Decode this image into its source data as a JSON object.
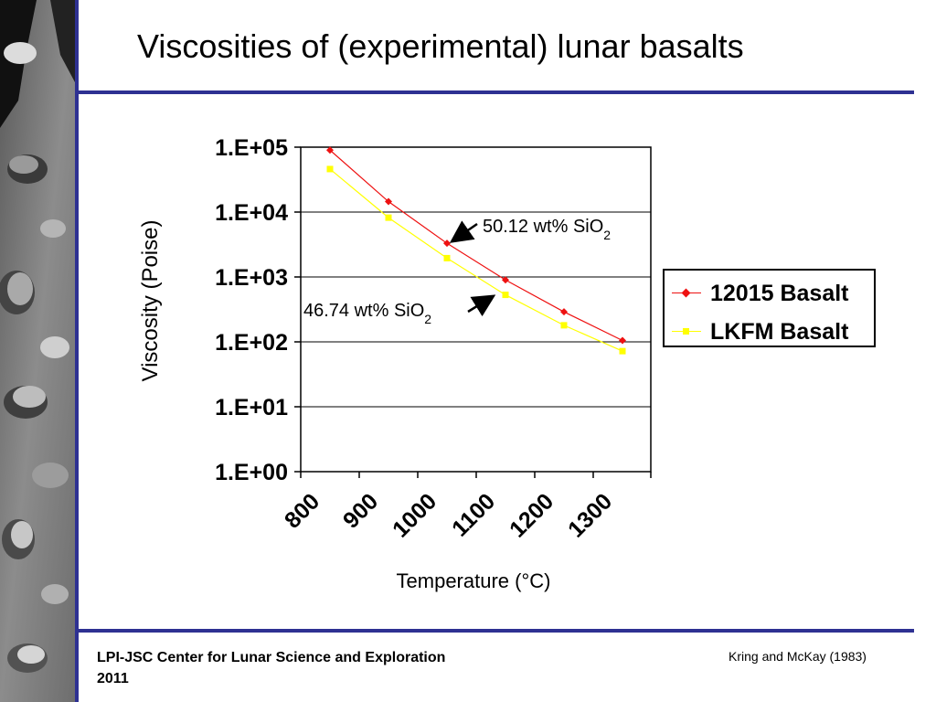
{
  "slide": {
    "title": "Viscosities of (experimental) lunar basalts",
    "footer_org": "LPI-JSC Center for Lunar Science and Exploration",
    "footer_year": "2011",
    "footer_citation": "Kring and McKay (1983)"
  },
  "colors": {
    "accent_line": "#2e3192",
    "series_12015": "#ee1111",
    "series_lkfm": "#ffff00"
  },
  "chart_data": {
    "type": "line",
    "xlabel": "Temperature (°C)",
    "ylabel": "Viscosity (Poise)",
    "y_scale": "log",
    "ylim": [
      1,
      100000
    ],
    "xlim": [
      800,
      1300
    ],
    "y_ticks": [
      "1.E+00",
      "1.E+01",
      "1.E+02",
      "1.E+03",
      "1.E+04",
      "1.E+05"
    ],
    "x_ticks": [
      "800",
      "900",
      "1000",
      "1100",
      "1200",
      "1300"
    ],
    "grid": "horizontal",
    "legend_position": "right",
    "series": [
      {
        "name": "12015 Basalt",
        "color": "#ee1111",
        "marker": "diamond",
        "x": [
          850,
          950,
          1050,
          1150,
          1250,
          1350
        ],
        "y": [
          90000,
          14500,
          3300,
          900,
          290,
          105
        ]
      },
      {
        "name": "LKFM Basalt",
        "color": "#ffff00",
        "marker": "square",
        "x": [
          850,
          950,
          1050,
          1150,
          1250,
          1350
        ],
        "y": [
          46000,
          8200,
          1950,
          530,
          180,
          72
        ]
      }
    ],
    "annotations": [
      {
        "text": "50.12 wt% SiO",
        "sub": "2",
        "series": "12015 Basalt",
        "point_x": 1050
      },
      {
        "text": "46.74 wt% SiO",
        "sub": "2",
        "series": "LKFM Basalt",
        "point_x": 1150
      }
    ]
  }
}
